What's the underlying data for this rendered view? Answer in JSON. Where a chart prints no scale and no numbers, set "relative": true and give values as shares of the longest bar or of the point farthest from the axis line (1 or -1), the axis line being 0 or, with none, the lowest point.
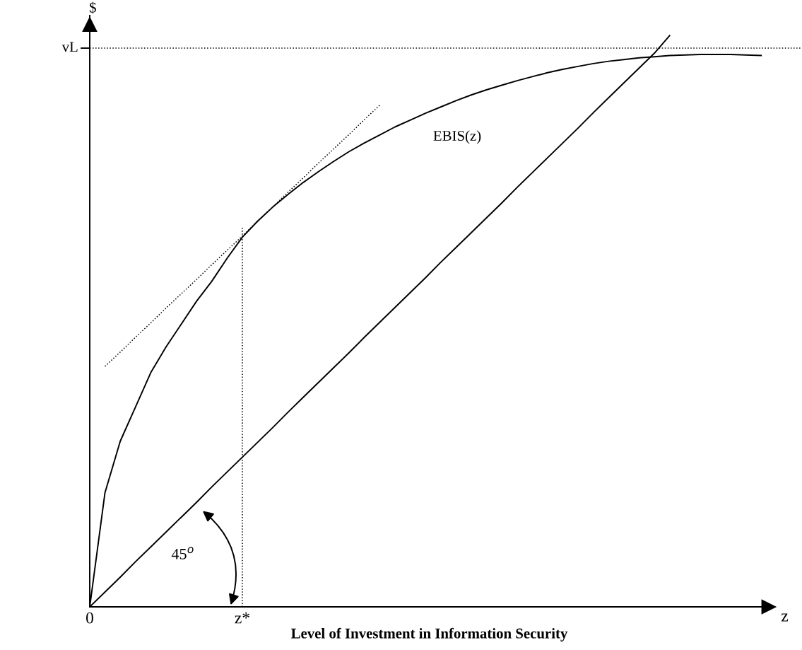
{
  "chart_data": {
    "type": "line",
    "relative": true,
    "ylabel": "$",
    "xlabel": "Level of Investment in Information Security",
    "categories": [
      "0",
      null,
      null,
      null,
      null,
      null,
      null,
      null,
      null,
      null,
      "z*",
      null,
      null,
      null,
      null,
      null,
      null,
      null,
      null,
      null,
      null,
      null,
      null,
      null,
      null,
      null,
      null,
      null,
      null,
      null,
      null,
      null,
      null,
      null,
      null,
      null,
      null,
      null,
      null,
      null,
      null,
      null,
      null,
      null,
      null
    ],
    "grid": false,
    "series": [
      {
        "name": "EBIS(z)",
        "color": "#000000",
        "line_style": "solid",
        "values": [
          0,
          0.2,
          0.29,
          0.35,
          0.41,
          0.455,
          0.495,
          0.535,
          0.57,
          0.61,
          0.647,
          0.675,
          0.7,
          0.722,
          0.743,
          0.762,
          0.78,
          0.797,
          0.812,
          0.826,
          0.84,
          0.852,
          0.864,
          0.875,
          0.886,
          0.896,
          0.905,
          0.913,
          0.921,
          0.928,
          0.935,
          0.941,
          0.946,
          0.951,
          0.955,
          0.958,
          0.961,
          0.963,
          0.965,
          0.966,
          0.967,
          0.967,
          0.967,
          0.966,
          0.965
        ]
      },
      {
        "color": "#000000",
        "line_style": "solid",
        "values": [
          0,
          0.026,
          0.052,
          0.079,
          0.105,
          0.131,
          0.157,
          0.183,
          0.21,
          0.236,
          0.262,
          0.288,
          0.314,
          0.341,
          0.367,
          0.393,
          0.419,
          0.445,
          0.472,
          0.498,
          0.524,
          0.55,
          0.576,
          0.603,
          0.629,
          0.655,
          0.681,
          0.707,
          0.734,
          0.76,
          0.786,
          0.812,
          0.838,
          0.865,
          0.891,
          0.917,
          0.943,
          0.969,
          1.0,
          null,
          null,
          null,
          null,
          null,
          null
        ]
      },
      {
        "color": "#000000",
        "line_style": "dotted",
        "values": [
          null,
          0.421,
          0.446,
          0.472,
          0.497,
          0.523,
          0.548,
          0.573,
          0.599,
          0.624,
          0.649,
          0.675,
          0.7,
          0.726,
          0.751,
          0.777,
          0.802,
          0.827,
          0.853,
          0.878,
          null,
          null,
          null,
          null,
          null,
          null,
          null,
          null,
          null,
          null,
          null,
          null,
          null,
          null,
          null,
          null,
          null,
          null,
          null,
          null,
          null,
          null,
          null,
          null,
          null
        ]
      }
    ],
    "ref_lines": [
      {
        "axis": "y",
        "value": 0.978,
        "label": "vL",
        "color": "#000000",
        "line_style": "dotted"
      },
      {
        "axis": "x",
        "value": "z*",
        "color": "#000000",
        "line_style": "dotted"
      }
    ],
    "annotations": [
      "45$^{o}$",
      "z"
    ]
  }
}
